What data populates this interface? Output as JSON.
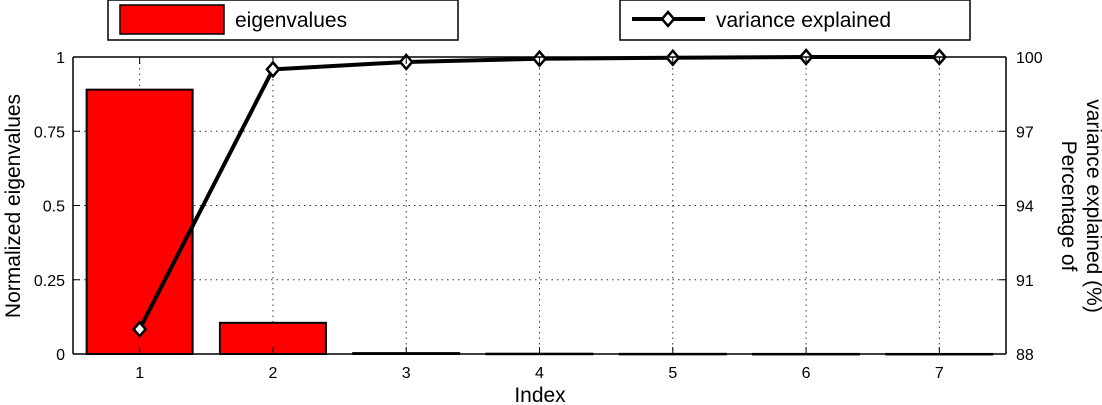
{
  "chart_data": {
    "type": "bar+line",
    "categories": [
      "1",
      "2",
      "3",
      "4",
      "5",
      "6",
      "7"
    ],
    "series": [
      {
        "name": "eigenvalues",
        "type": "bar",
        "axis": "left",
        "color": "#ff0000",
        "values": [
          0.89,
          0.105,
          0.003,
          0.001,
          0.0005,
          0.0003,
          0.0002
        ]
      },
      {
        "name": "variance explained",
        "type": "line",
        "axis": "right",
        "color": "#000000",
        "marker": "diamond",
        "values": [
          89.0,
          99.5,
          99.8,
          99.93,
          99.97,
          100.0,
          100.0
        ]
      }
    ],
    "xlabel": "Index",
    "ylabel_left": "Normalized eigenvalues",
    "ylabel_right": [
      "Percentage of",
      "variance explained (%)"
    ],
    "ylim_left": [
      0,
      1
    ],
    "ylim_right": [
      88,
      100
    ],
    "yticks_left": [
      "0",
      "0.25",
      "0.5",
      "0.75",
      "1"
    ],
    "yticks_right": [
      "88",
      "91",
      "94",
      "97",
      "100"
    ],
    "grid": true,
    "legend_placement": "top"
  }
}
